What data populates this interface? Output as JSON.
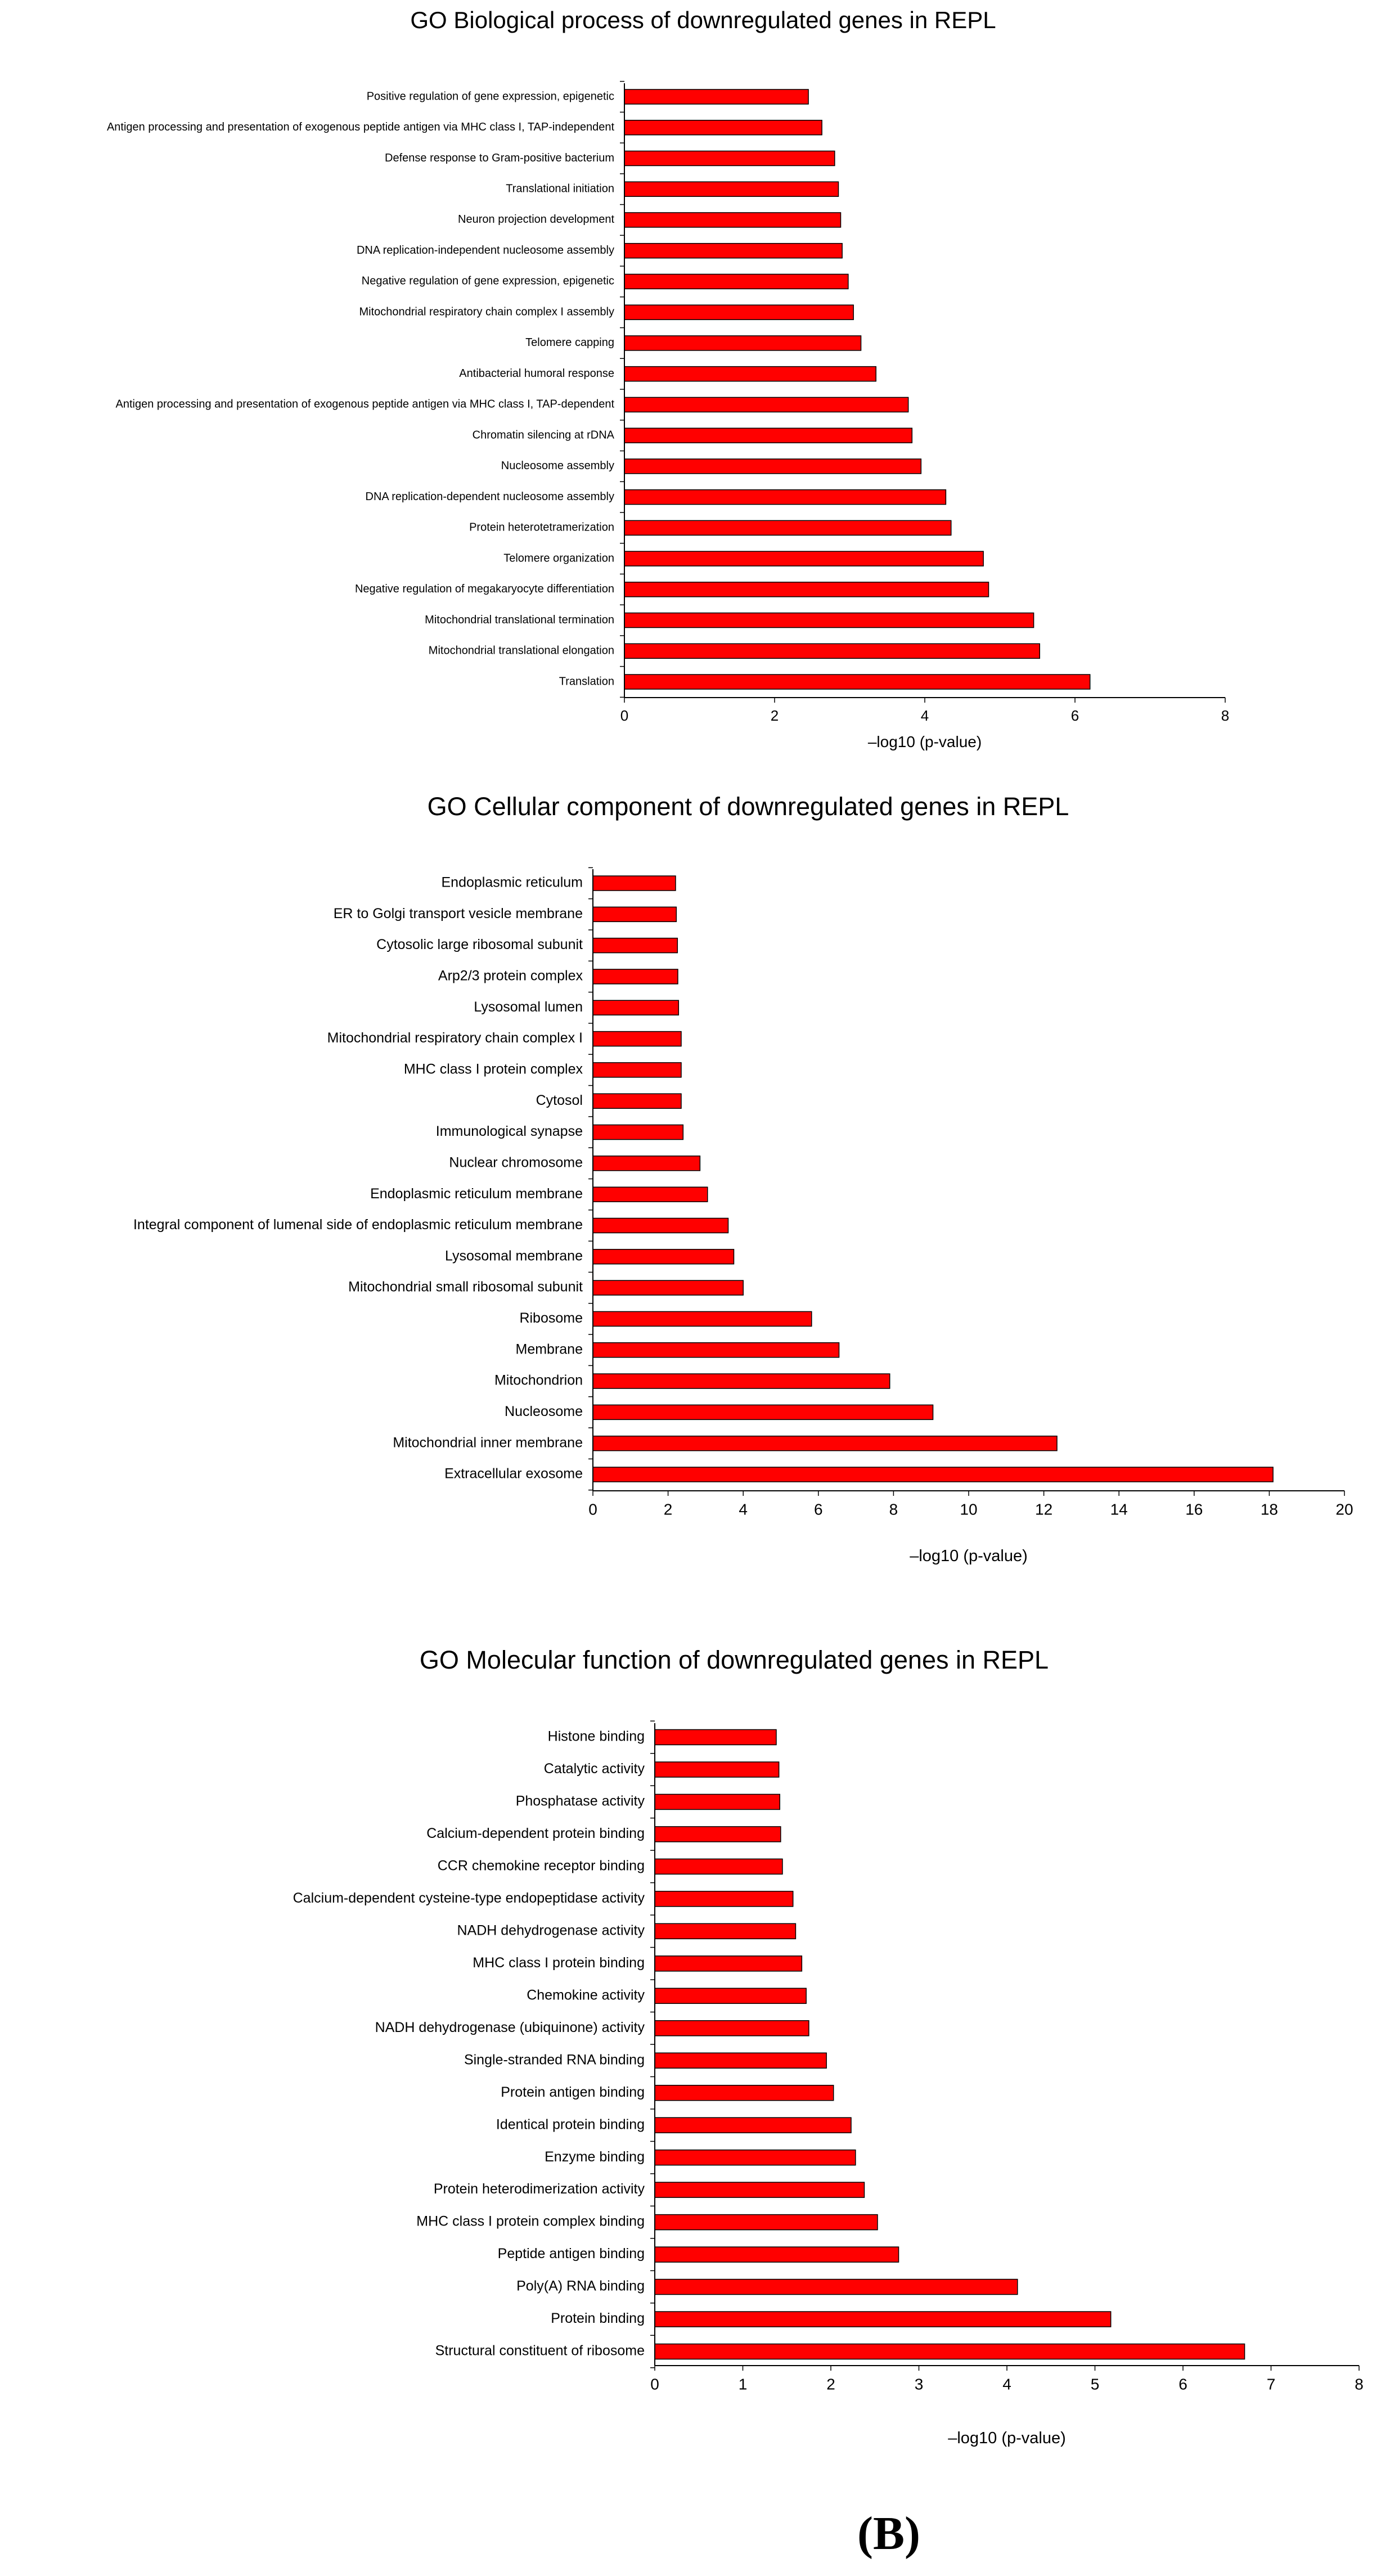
{
  "colors": {
    "bar": "#ff0000",
    "bar_stroke": "#000000",
    "axis": "#000000"
  },
  "panel_label": "(B)",
  "chart_data": [
    {
      "type": "bar",
      "orientation": "horizontal",
      "title": "GO Biological process of downregulated genes in REPL",
      "xlabel": "–log10 (p-value)",
      "xlim": [
        0,
        8
      ],
      "xticks": [
        0,
        2,
        4,
        6,
        8
      ],
      "categories": [
        "Positive regulation of gene expression, epigenetic",
        "Antigen processing and presentation of exogenous peptide antigen via MHC class I, TAP-independent",
        "Defense response to Gram-positive bacterium",
        "Translational initiation",
        "Neuron projection development",
        "DNA replication-independent nucleosome assembly",
        "Negative regulation of gene expression, epigenetic",
        "Mitochondrial respiratory chain complex I assembly",
        "Telomere capping",
        "Antibacterial humoral response",
        "Antigen processing and presentation of exogenous peptide antigen via MHC class I, TAP-dependent",
        "Chromatin silencing at rDNA",
        "Nucleosome assembly",
        "DNA replication-dependent nucleosome assembly",
        "Protein heterotetramerization",
        "Telomere organization",
        "Negative regulation of megakaryocyte differentiation",
        "Mitochondrial translational termination",
        "Mitochondrial translational elongation",
        "Translation"
      ],
      "values": [
        2.45,
        2.63,
        2.8,
        2.85,
        2.88,
        2.9,
        2.98,
        3.05,
        3.15,
        3.35,
        3.78,
        3.83,
        3.95,
        4.28,
        4.35,
        4.78,
        4.85,
        5.45,
        5.53,
        6.2
      ]
    },
    {
      "type": "bar",
      "orientation": "horizontal",
      "title": "GO Cellular component of downregulated genes in REPL",
      "xlabel": "–log10 (p-value)",
      "xlim": [
        0,
        20
      ],
      "xticks": [
        0,
        2,
        4,
        6,
        8,
        10,
        12,
        14,
        16,
        18,
        20
      ],
      "categories": [
        "Endoplasmic reticulum",
        "ER to Golgi transport vesicle membrane",
        "Cytosolic large ribosomal subunit",
        "Arp2/3 protein complex",
        "Lysosomal lumen",
        "Mitochondrial respiratory chain complex I",
        "MHC class I protein complex",
        "Cytosol",
        "Immunological synapse",
        "Nuclear chromosome",
        "Endoplasmic reticulum membrane",
        "Integral component of lumenal side of endoplasmic reticulum membrane",
        "Lysosomal membrane",
        "Mitochondrial small ribosomal subunit",
        "Ribosome",
        "Membrane",
        "Mitochondrion",
        "Nucleosome",
        "Mitochondrial inner membrane",
        "Extracellular exosome"
      ],
      "values": [
        2.2,
        2.22,
        2.25,
        2.26,
        2.28,
        2.35,
        2.35,
        2.35,
        2.4,
        2.85,
        3.05,
        3.6,
        3.75,
        4.0,
        5.82,
        6.55,
        7.9,
        9.05,
        12.35,
        18.1
      ]
    },
    {
      "type": "bar",
      "orientation": "horizontal",
      "title": "GO Molecular function of downregulated genes in REPL",
      "xlabel": "–log10 (p-value)",
      "xlim": [
        0,
        8
      ],
      "xticks": [
        0,
        1,
        2,
        3,
        4,
        5,
        6,
        7,
        8
      ],
      "categories": [
        "Histone binding",
        "Catalytic activity",
        "Phosphatase activity",
        "Calcium-dependent protein binding",
        "CCR chemokine receptor binding",
        "Calcium-dependent cysteine-type endopeptidase activity",
        "NADH dehydrogenase activity",
        "MHC class I protein binding",
        "Chemokine activity",
        "NADH dehydrogenase (ubiquinone) activity",
        "Single-stranded RNA binding",
        "Protein antigen binding",
        "Identical protein binding",
        "Enzyme binding",
        "Protein heterodimerization activity",
        "MHC class I protein complex binding",
        "Peptide antigen binding",
        "Poly(A) RNA binding",
        "Protein binding",
        "Structural constituent of ribosome"
      ],
      "values": [
        1.38,
        1.41,
        1.42,
        1.43,
        1.45,
        1.57,
        1.6,
        1.67,
        1.72,
        1.75,
        1.95,
        2.03,
        2.23,
        2.28,
        2.38,
        2.53,
        2.77,
        4.12,
        5.18,
        6.7
      ]
    }
  ]
}
